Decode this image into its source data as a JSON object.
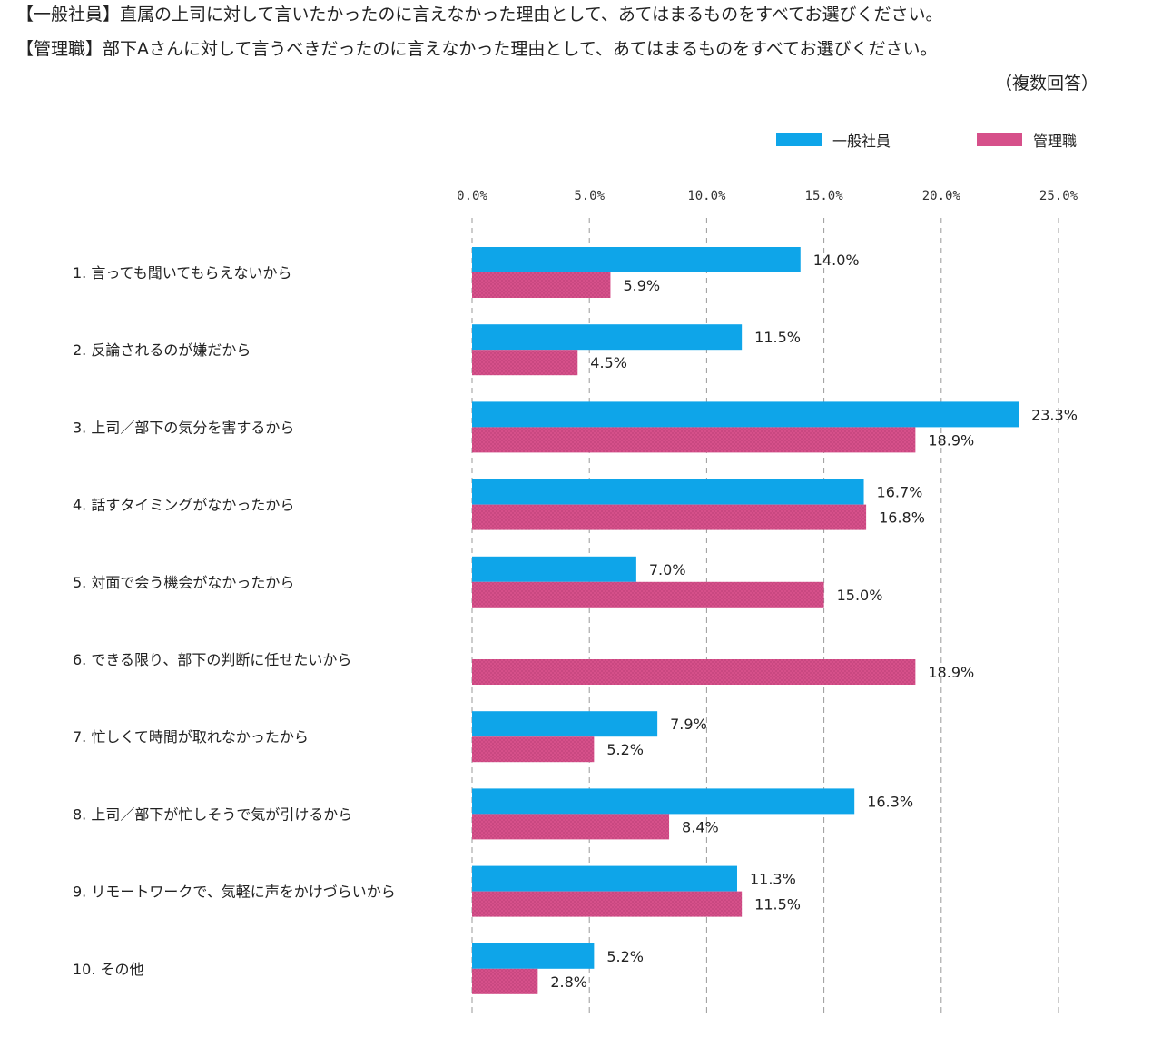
{
  "header": {
    "line1": "【一般社員】直属の上司に対して言いたかったのに言えなかった理由として、あてはまるものをすべてお選びください。",
    "line2": "【管理職】部下Aさんに対して言うべきだったのに言えなかった理由として、あてはまるものをすべてお選びください。",
    "note": "（複数回答）"
  },
  "colors": {
    "staff": "#0ea5e9",
    "manager": "#d6508a"
  },
  "chart_data": {
    "type": "bar",
    "orientation": "horizontal",
    "categories": [
      "1. 言っても聞いてもらえないから",
      "2. 反論されるのが嫌だから",
      "3. 上司／部下の気分を害するから",
      "4. 話すタイミングがなかったから",
      "5. 対面で会う機会がなかったから",
      "6. できる限り、部下の判断に任せたいから",
      "7. 忙しくて時間が取れなかったから",
      "8. 上司／部下が忙しそうで気が引けるから",
      "9. リモートワークで、気軽に声をかけづらいから",
      "10. その他"
    ],
    "series": [
      {
        "name": "一般社員",
        "values": [
          14.0,
          11.5,
          23.3,
          16.7,
          7.0,
          null,
          7.9,
          16.3,
          11.3,
          5.2
        ],
        "labels": [
          "14.0%",
          "11.5%",
          "23.3%",
          "16.7%",
          "7.0%",
          "",
          "7.9%",
          "16.3%",
          "11.3%",
          "5.2%"
        ]
      },
      {
        "name": "管理職",
        "values": [
          5.9,
          4.5,
          18.9,
          16.8,
          15.0,
          18.9,
          5.2,
          8.4,
          11.5,
          2.8
        ],
        "labels": [
          "5.9%",
          "4.5%",
          "18.9%",
          "16.8%",
          "15.0%",
          "18.9%",
          "5.2%",
          "8.4%",
          "11.5%",
          "2.8%"
        ]
      }
    ],
    "xlim": [
      0,
      25
    ],
    "ticks": [
      "0.0%",
      "5.0%",
      "10.0%",
      "15.0%",
      "20.0%",
      "25.0%"
    ],
    "legend": "top-right",
    "grid": "vertical dashed"
  }
}
